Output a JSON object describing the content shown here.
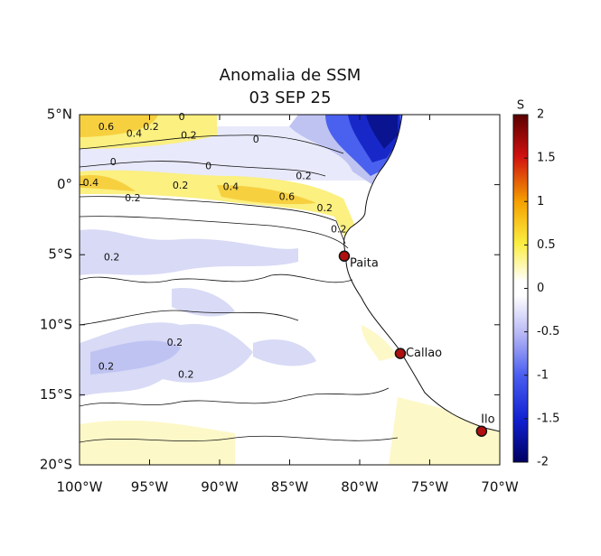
{
  "map": {
    "title": [
      "Anomalia de SSM",
      "03 SEP 25"
    ],
    "xlim": [
      -100,
      -70
    ],
    "ylim": [
      -20,
      5
    ],
    "xticks": [
      {
        "value": -100,
        "label": "100°W"
      },
      {
        "value": -95,
        "label": "95°W"
      },
      {
        "value": -90,
        "label": "90°W"
      },
      {
        "value": -85,
        "label": "85°W"
      },
      {
        "value": -80,
        "label": "80°W"
      },
      {
        "value": -75,
        "label": "75°W"
      },
      {
        "value": -70,
        "label": "70°W"
      }
    ],
    "yticks": [
      {
        "value": 5,
        "label": "5°N"
      },
      {
        "value": 0,
        "label": "0°"
      },
      {
        "value": -5,
        "label": "5°S"
      },
      {
        "value": -10,
        "label": "10°S"
      },
      {
        "value": -15,
        "label": "15°S"
      },
      {
        "value": -20,
        "label": "20°S"
      }
    ],
    "colorbar": {
      "label": "S",
      "lim": [
        -2,
        2
      ],
      "ticks": [
        2,
        1.5,
        1,
        0.5,
        0,
        -0.5,
        -1,
        -1.5,
        -2
      ]
    },
    "places": [
      {
        "name": "Paita",
        "lon": -81.1,
        "lat": -5.1
      },
      {
        "name": "Callao",
        "lon": -77.1,
        "lat": -12.05
      },
      {
        "name": "Ilo",
        "lon": -71.3,
        "lat": -17.6
      }
    ],
    "contour_labels": [
      {
        "text": "0.6",
        "lon": -98.1,
        "lat": 4.1
      },
      {
        "text": "0.4",
        "lon": -96.1,
        "lat": 3.6
      },
      {
        "text": "0.2",
        "lon": -94.9,
        "lat": 4.1
      },
      {
        "text": "0",
        "lon": -92.7,
        "lat": 4.8
      },
      {
        "text": "0.2",
        "lon": -92.2,
        "lat": 3.5
      },
      {
        "text": "0",
        "lon": -87.4,
        "lat": 3.2
      },
      {
        "text": "0",
        "lon": -97.6,
        "lat": 1.6
      },
      {
        "text": "0.4",
        "lon": -99.2,
        "lat": 0.1
      },
      {
        "text": "0",
        "lon": -90.8,
        "lat": 1.3
      },
      {
        "text": "0.2",
        "lon": -92.8,
        "lat": -0.1
      },
      {
        "text": "0.2",
        "lon": -96.2,
        "lat": -1.0
      },
      {
        "text": "0.4",
        "lon": -89.2,
        "lat": -0.2
      },
      {
        "text": "0.6",
        "lon": -85.2,
        "lat": -0.9
      },
      {
        "text": "0.2",
        "lon": -84.0,
        "lat": 0.6
      },
      {
        "text": "0.2",
        "lon": -82.5,
        "lat": -1.7
      },
      {
        "text": "0.2",
        "lon": -81.5,
        "lat": -3.2
      },
      {
        "text": "0.2",
        "lon": -97.7,
        "lat": -5.2
      },
      {
        "text": "0.2",
        "lon": -93.2,
        "lat": -11.3
      },
      {
        "text": "0.2",
        "lon": -98.1,
        "lat": -13.0
      },
      {
        "text": "0.2",
        "lon": -92.4,
        "lat": -13.6
      }
    ]
  }
}
